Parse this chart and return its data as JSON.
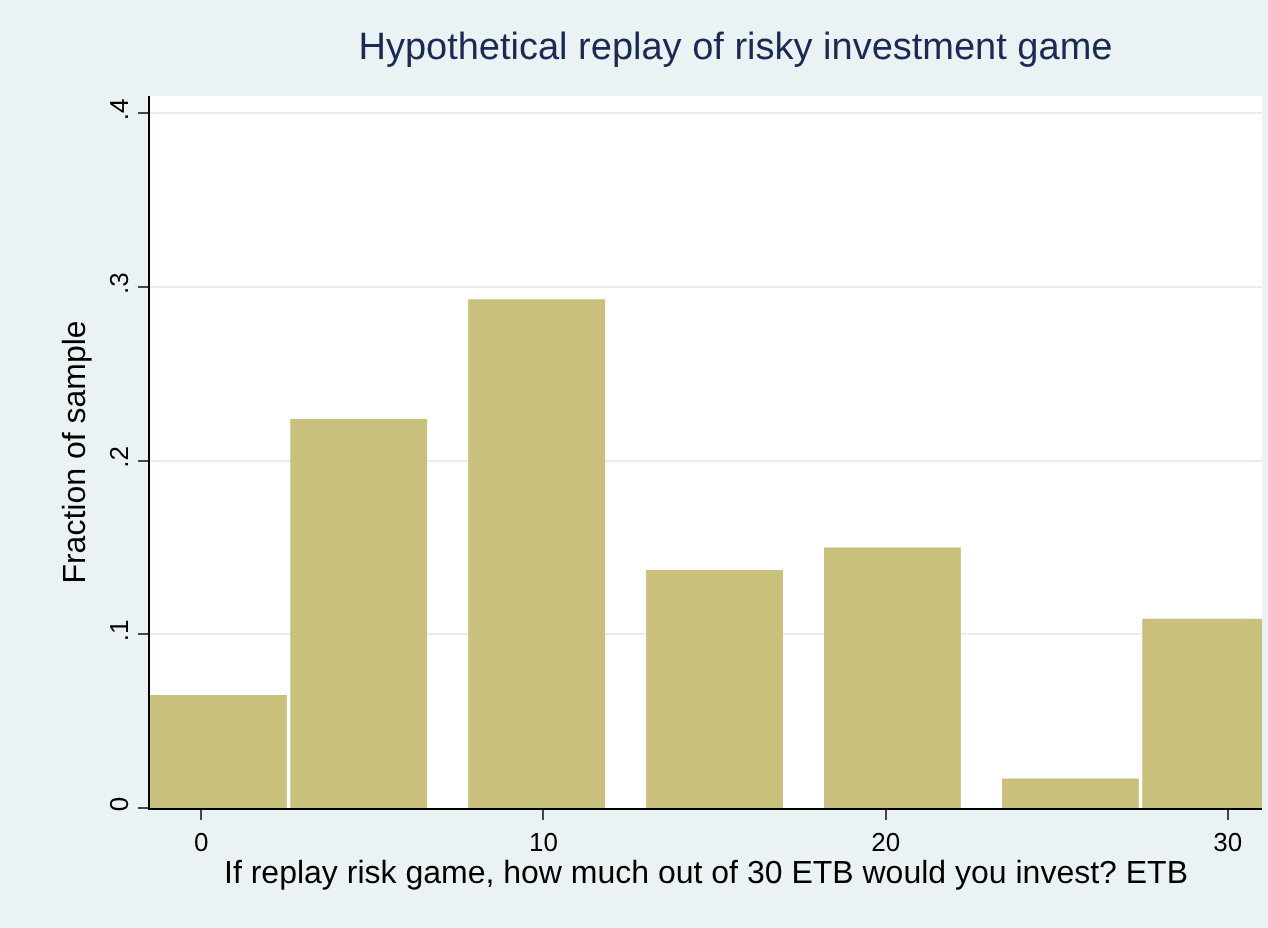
{
  "chart_data": {
    "type": "bar",
    "title": "Hypothetical replay of risky investment game",
    "xlabel": "If replay risk game, how much out of 30 ETB would you invest? ETB",
    "ylabel": "Fraction of sample",
    "x": [
      0.5,
      4.6,
      9.8,
      15,
      20.2,
      25.4,
      29.5
    ],
    "values": [
      0.065,
      0.224,
      0.293,
      0.137,
      0.15,
      0.017,
      0.109
    ],
    "color": "#c9c07d",
    "xlim": [
      -1.5,
      31
    ],
    "xticks": [
      0,
      10,
      20,
      30
    ],
    "ylim": [
      0,
      0.41
    ],
    "yticks": [
      0,
      {
        "value": 0.1,
        "label": ".1"
      },
      {
        "value": 0.2,
        "label": ".2"
      },
      {
        "value": 0.3,
        "label": ".3"
      },
      {
        "value": 0.4,
        "label": ".4"
      }
    ],
    "grid": "y"
  }
}
